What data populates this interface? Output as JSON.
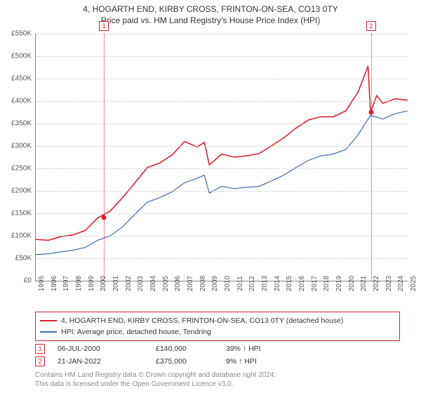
{
  "title_line1": "4, HOGARTH END, KIRBY CROSS, FRINTON-ON-SEA, CO13 0TY",
  "title_line2": "Price paid vs. HM Land Registry's House Price Index (HPI)",
  "chart": {
    "type": "line",
    "x_years": [
      1995,
      1996,
      1997,
      1998,
      1999,
      2000,
      2001,
      2002,
      2003,
      2004,
      2005,
      2006,
      2007,
      2008,
      2009,
      2010,
      2011,
      2012,
      2013,
      2014,
      2015,
      2016,
      2017,
      2018,
      2019,
      2020,
      2021,
      2022,
      2023,
      2024,
      2025
    ],
    "y_ticks": [
      0,
      50,
      100,
      150,
      200,
      250,
      300,
      350,
      400,
      450,
      500,
      550
    ],
    "y_tick_labels": [
      "£0",
      "£50K",
      "£100K",
      "£150K",
      "£200K",
      "£250K",
      "£300K",
      "£350K",
      "£400K",
      "£450K",
      "£500K",
      "£550K"
    ],
    "ylim": [
      0,
      550
    ],
    "xlim": [
      1995,
      2025
    ],
    "grid_color": "#c8c8c8",
    "background_color": "#ffffff",
    "series": [
      {
        "key": "property",
        "label": "4, HOGARTH END, KIRBY CROSS, FRINTON-ON-SEA, CO13 0TY (detached house)",
        "color": "#d9232e",
        "line_width": 1.6,
        "points": [
          [
            1995,
            92
          ],
          [
            1996,
            90
          ],
          [
            1997,
            98
          ],
          [
            1998,
            102
          ],
          [
            1999,
            112
          ],
          [
            2000,
            140
          ],
          [
            2001,
            155
          ],
          [
            2002,
            185
          ],
          [
            2003,
            218
          ],
          [
            2004,
            252
          ],
          [
            2005,
            262
          ],
          [
            2006,
            280
          ],
          [
            2007,
            310
          ],
          [
            2008,
            298
          ],
          [
            2008.6,
            308
          ],
          [
            2009,
            258
          ],
          [
            2010,
            282
          ],
          [
            2011,
            275
          ],
          [
            2012,
            278
          ],
          [
            2013,
            283
          ],
          [
            2014,
            300
          ],
          [
            2015,
            318
          ],
          [
            2016,
            340
          ],
          [
            2017,
            358
          ],
          [
            2018,
            365
          ],
          [
            2019,
            365
          ],
          [
            2020,
            378
          ],
          [
            2021,
            420
          ],
          [
            2021.8,
            478
          ],
          [
            2022,
            375
          ],
          [
            2022.5,
            412
          ],
          [
            2023,
            395
          ],
          [
            2024,
            405
          ],
          [
            2025,
            402
          ]
        ]
      },
      {
        "key": "hpi",
        "label": "HPI: Average price, detached house, Tendring",
        "color": "#3b6fb6",
        "line_width": 1.2,
        "points": [
          [
            1995,
            58
          ],
          [
            1996,
            60
          ],
          [
            1997,
            64
          ],
          [
            1998,
            68
          ],
          [
            1999,
            74
          ],
          [
            2000,
            90
          ],
          [
            2001,
            100
          ],
          [
            2002,
            120
          ],
          [
            2003,
            148
          ],
          [
            2004,
            175
          ],
          [
            2005,
            185
          ],
          [
            2006,
            198
          ],
          [
            2007,
            218
          ],
          [
            2008,
            228
          ],
          [
            2008.6,
            235
          ],
          [
            2009,
            195
          ],
          [
            2010,
            210
          ],
          [
            2011,
            205
          ],
          [
            2012,
            208
          ],
          [
            2013,
            210
          ],
          [
            2014,
            222
          ],
          [
            2015,
            235
          ],
          [
            2016,
            252
          ],
          [
            2017,
            268
          ],
          [
            2018,
            278
          ],
          [
            2019,
            282
          ],
          [
            2020,
            292
          ],
          [
            2021,
            325
          ],
          [
            2022,
            368
          ],
          [
            2023,
            360
          ],
          [
            2024,
            372
          ],
          [
            2025,
            378
          ]
        ]
      }
    ],
    "sale_events": [
      {
        "n": "1",
        "year": 2000.5,
        "price": 140,
        "color": "#d9232e"
      },
      {
        "n": "2",
        "year": 2022.05,
        "price": 375,
        "color": "#d9232e"
      }
    ]
  },
  "legend": {
    "border_color": "#d9232e"
  },
  "sales_table": [
    {
      "n": "1",
      "date": "06-JUL-2000",
      "price": "£140,000",
      "pct": "39% ↑ HPI",
      "color": "#d9232e"
    },
    {
      "n": "2",
      "date": "21-JAN-2022",
      "price": "£375,000",
      "pct": "9% ↑ HPI",
      "color": "#d9232e"
    }
  ],
  "credit_line1": "Contains HM Land Registry data © Crown copyright and database right 2024.",
  "credit_line2": "This data is licensed under the Open Government Licence v3.0."
}
